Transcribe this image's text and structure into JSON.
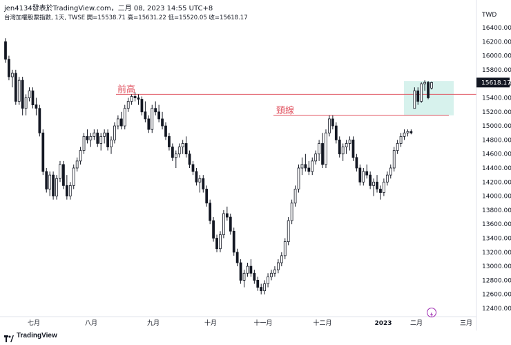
{
  "header": {
    "publish_line": "jen4134發表於TradingView.com，二月 08, 2023 14:55 UTC+8",
    "symbol_line": "台灣加權股票指數, 1天, TWSE  開=15538.71  高=15631.22  低=15520.05  收=15618.17"
  },
  "footer": {
    "brand": "TradingView",
    "logo_icon": "tradingview-logo-icon"
  },
  "chart_data": {
    "type": "candlestick",
    "title": "台灣加權股票指數, 1天, TWSE",
    "currency_label": "TWD",
    "ylim": [
      12300,
      16600
    ],
    "y_ticks": [
      12400,
      12600,
      12800,
      13000,
      13200,
      13400,
      13600,
      13800,
      14000,
      14200,
      14400,
      14600,
      14800,
      15000,
      15200,
      15400,
      15600,
      15800,
      16000,
      16200,
      16400
    ],
    "y_tick_labels": [
      "12400.00",
      "12600.00",
      "12800.00",
      "13000.00",
      "13200.00",
      "13400.00",
      "13600.00",
      "13800.00",
      "14000.00",
      "14200.00",
      "14400.00",
      "14600.00",
      "14800.00",
      "15000.00",
      "15200.00",
      "15400.00",
      "15600.00",
      "15800.00",
      "16000.00",
      "16200.00",
      "16400.00"
    ],
    "last_price_label": "15618.17",
    "x_ticks": [
      "七月",
      "八月",
      "九月",
      "十月",
      "十一月",
      "十二月",
      "2023",
      "二月",
      "三月"
    ],
    "x_tick_bold": [
      "2023"
    ],
    "annotations": [
      {
        "label": "前高",
        "price": 15450,
        "kind": "horizontal-line"
      },
      {
        "label": "頸線",
        "price": 15150,
        "kind": "horizontal-line"
      }
    ],
    "highlight_zone": {
      "price_top": 15640,
      "price_bottom": 15150
    },
    "candles": [
      [
        16200,
        16250,
        15900,
        15950
      ],
      [
        15950,
        16000,
        15650,
        15700
      ],
      [
        15700,
        15800,
        15550,
        15750
      ],
      [
        15750,
        15800,
        15300,
        15350
      ],
      [
        15350,
        15700,
        15300,
        15650
      ],
      [
        15650,
        15700,
        15150,
        15250
      ],
      [
        15250,
        15450,
        15150,
        15400
      ],
      [
        15400,
        15550,
        15350,
        15500
      ],
      [
        15500,
        15550,
        15250,
        15300
      ],
      [
        15300,
        15400,
        15150,
        15250
      ],
      [
        15250,
        15300,
        14850,
        14900
      ],
      [
        14900,
        14950,
        14300,
        14350
      ],
      [
        14350,
        14400,
        14050,
        14100
      ],
      [
        14100,
        14350,
        14000,
        14300
      ],
      [
        14300,
        14350,
        13950,
        14000
      ],
      [
        14000,
        14300,
        13950,
        14250
      ],
      [
        14250,
        14500,
        14200,
        14450
      ],
      [
        14450,
        14500,
        14100,
        14150
      ],
      [
        14150,
        14300,
        13950,
        14000
      ],
      [
        14000,
        14200,
        13950,
        14150
      ],
      [
        14150,
        14450,
        14100,
        14400
      ],
      [
        14400,
        14550,
        14350,
        14500
      ],
      [
        14500,
        14700,
        14450,
        14650
      ],
      [
        14650,
        14900,
        14600,
        14850
      ],
      [
        14850,
        14950,
        14750,
        14800
      ],
      [
        14800,
        14900,
        14700,
        14850
      ],
      [
        14850,
        14950,
        14800,
        14900
      ],
      [
        14900,
        14950,
        14700,
        14750
      ],
      [
        14750,
        14900,
        14650,
        14850
      ],
      [
        14850,
        14950,
        14750,
        14900
      ],
      [
        14900,
        14950,
        14650,
        14700
      ],
      [
        14700,
        14850,
        14600,
        14800
      ],
      [
        14800,
        15050,
        14750,
        15000
      ],
      [
        15000,
        15150,
        14950,
        15100
      ],
      [
        15100,
        15200,
        14950,
        15000
      ],
      [
        15000,
        15300,
        14950,
        15250
      ],
      [
        15250,
        15400,
        15200,
        15350
      ],
      [
        15350,
        15450,
        15300,
        15420
      ],
      [
        15420,
        15480,
        15350,
        15400
      ],
      [
        15400,
        15450,
        15300,
        15380
      ],
      [
        15380,
        15420,
        15150,
        15200
      ],
      [
        15200,
        15350,
        15050,
        15100
      ],
      [
        15100,
        15150,
        14900,
        14950
      ],
      [
        14950,
        15300,
        14900,
        15250
      ],
      [
        15250,
        15350,
        15150,
        15200
      ],
      [
        15200,
        15300,
        15050,
        15100
      ],
      [
        15100,
        15200,
        14950,
        15000
      ],
      [
        15000,
        15050,
        14800,
        14850
      ],
      [
        14850,
        14900,
        14650,
        14700
      ],
      [
        14700,
        14750,
        14500,
        14550
      ],
      [
        14550,
        14650,
        14400,
        14600
      ],
      [
        14600,
        14750,
        14550,
        14700
      ],
      [
        14700,
        14800,
        14600,
        14750
      ],
      [
        14750,
        14850,
        14550,
        14600
      ],
      [
        14600,
        14650,
        14400,
        14450
      ],
      [
        14450,
        14500,
        14300,
        14350
      ],
      [
        14350,
        14400,
        14150,
        14200
      ],
      [
        14200,
        14300,
        14050,
        14250
      ],
      [
        14250,
        14300,
        14050,
        14100
      ],
      [
        14100,
        14150,
        13850,
        13900
      ],
      [
        13900,
        13950,
        13600,
        13650
      ],
      [
        13650,
        13700,
        13350,
        13400
      ],
      [
        13400,
        13450,
        13200,
        13250
      ],
      [
        13250,
        13500,
        13200,
        13450
      ],
      [
        13450,
        13800,
        13400,
        13750
      ],
      [
        13750,
        13850,
        13650,
        13700
      ],
      [
        13700,
        13750,
        13450,
        13500
      ],
      [
        13500,
        13550,
        13150,
        13200
      ],
      [
        13200,
        13250,
        13000,
        13050
      ],
      [
        13050,
        13100,
        12750,
        12800
      ],
      [
        12800,
        12950,
        12700,
        12900
      ],
      [
        12900,
        13050,
        12850,
        13000
      ],
      [
        13000,
        13100,
        12850,
        12900
      ],
      [
        12900,
        12950,
        12750,
        12800
      ],
      [
        12800,
        12850,
        12650,
        12700
      ],
      [
        12700,
        12750,
        12600,
        12650
      ],
      [
        12650,
        12800,
        12600,
        12750
      ],
      [
        12750,
        12900,
        12700,
        12850
      ],
      [
        12850,
        12950,
        12800,
        12900
      ],
      [
        12900,
        13000,
        12850,
        12950
      ],
      [
        12950,
        13100,
        12900,
        13050
      ],
      [
        13050,
        13200,
        13000,
        13150
      ],
      [
        13150,
        13400,
        13100,
        13350
      ],
      [
        13350,
        13700,
        13300,
        13650
      ],
      [
        13650,
        13950,
        13600,
        13900
      ],
      [
        13900,
        14150,
        13850,
        14100
      ],
      [
        14100,
        14450,
        14050,
        14400
      ],
      [
        14400,
        14550,
        14300,
        14450
      ],
      [
        14450,
        14600,
        14350,
        14400
      ],
      [
        14400,
        14500,
        14300,
        14350
      ],
      [
        14350,
        14550,
        14300,
        14500
      ],
      [
        14500,
        14650,
        14450,
        14600
      ],
      [
        14600,
        14800,
        14500,
        14750
      ],
      [
        14750,
        14900,
        14400,
        14450
      ],
      [
        14450,
        14950,
        14400,
        14900
      ],
      [
        14900,
        15150,
        14850,
        15100
      ],
      [
        15100,
        15150,
        14950,
        15000
      ],
      [
        15000,
        15050,
        14750,
        14800
      ],
      [
        14800,
        14850,
        14550,
        14600
      ],
      [
        14600,
        14750,
        14500,
        14700
      ],
      [
        14700,
        14800,
        14600,
        14750
      ],
      [
        14750,
        14850,
        14650,
        14800
      ],
      [
        14800,
        14850,
        14500,
        14550
      ],
      [
        14550,
        14600,
        14350,
        14400
      ],
      [
        14400,
        14450,
        14150,
        14200
      ],
      [
        14200,
        14400,
        14150,
        14350
      ],
      [
        14350,
        14450,
        14250,
        14300
      ],
      [
        14300,
        14350,
        14100,
        14150
      ],
      [
        14150,
        14250,
        14000,
        14200
      ],
      [
        14200,
        14300,
        14050,
        14100
      ],
      [
        14100,
        14150,
        13950,
        14050
      ],
      [
        14050,
        14250,
        14000,
        14200
      ],
      [
        14200,
        14350,
        14150,
        14300
      ],
      [
        14300,
        14450,
        14250,
        14400
      ],
      [
        14400,
        14700,
        14350,
        14650
      ],
      [
        14650,
        14800,
        14600,
        14750
      ],
      [
        14750,
        14900,
        14700,
        14850
      ],
      [
        14850,
        14950,
        14800,
        14900
      ],
      [
        14900,
        14950,
        14850,
        14920
      ],
      [
        14920,
        14950,
        14880,
        14900
      ],
      [
        15250,
        15550,
        15250,
        15500
      ],
      [
        15500,
        15550,
        15300,
        15350
      ],
      [
        15350,
        15620,
        15330,
        15600
      ],
      [
        15600,
        15650,
        15500,
        15620
      ],
      [
        15620,
        15640,
        15380,
        15400
      ],
      [
        15538.71,
        15631.22,
        15520.05,
        15618.17
      ]
    ],
    "colors": {
      "up": "#ffffff",
      "down": "#131722",
      "wick": "#131722",
      "annotation": "#e0525f",
      "zone_fill": "#d7f2ed",
      "last_price_bg": "#131722"
    }
  }
}
